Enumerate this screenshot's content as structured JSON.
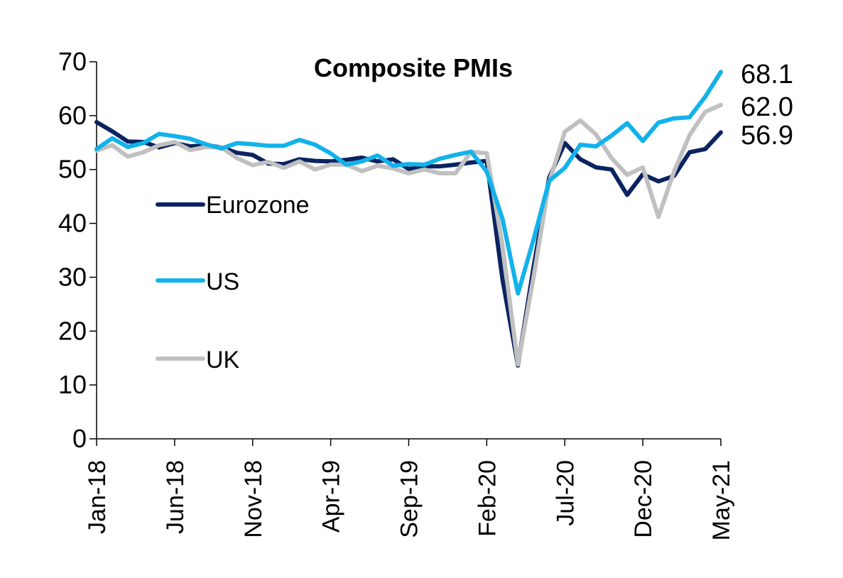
{
  "chart_data": {
    "type": "line",
    "title": "Composite PMIs",
    "xlabel": "",
    "ylabel": "",
    "ylim": [
      0,
      70
    ],
    "yticks": [
      0,
      10,
      20,
      30,
      40,
      50,
      60,
      70
    ],
    "grid": false,
    "legend_position": "left-middle",
    "x": [
      "Jan-18",
      "Feb-18",
      "Mar-18",
      "Apr-18",
      "May-18",
      "Jun-18",
      "Jul-18",
      "Aug-18",
      "Sep-18",
      "Oct-18",
      "Nov-18",
      "Dec-18",
      "Jan-19",
      "Feb-19",
      "Mar-19",
      "Apr-19",
      "May-19",
      "Jun-19",
      "Jul-19",
      "Aug-19",
      "Sep-19",
      "Oct-19",
      "Nov-19",
      "Dec-19",
      "Jan-20",
      "Feb-20",
      "Mar-20",
      "Apr-20",
      "May-20",
      "Jun-20",
      "Jul-20",
      "Aug-20",
      "Sep-20",
      "Oct-20",
      "Nov-20",
      "Dec-20",
      "Jan-21",
      "Feb-21",
      "Mar-21",
      "Apr-21",
      "May-21"
    ],
    "xtick_labels": [
      "Jan-18",
      "Jun-18",
      "Nov-18",
      "Apr-19",
      "Sep-19",
      "Feb-20",
      "Jul-20",
      "Dec-20",
      "May-21"
    ],
    "series": [
      {
        "name": "Eurozone",
        "color": "#0b2360",
        "values": [
          58.8,
          57.1,
          55.2,
          55.1,
          54.1,
          54.9,
          54.3,
          54.5,
          54.1,
          53.1,
          52.7,
          51.1,
          51.0,
          51.9,
          51.6,
          51.5,
          51.8,
          52.2,
          51.5,
          51.9,
          50.1,
          50.6,
          50.6,
          50.9,
          51.3,
          51.6,
          29.7,
          13.6,
          31.9,
          48.5,
          54.9,
          51.9,
          50.4,
          50.0,
          45.3,
          49.1,
          47.8,
          48.8,
          53.2,
          53.8,
          56.9
        ]
      },
      {
        "name": "US",
        "color": "#12b2ea",
        "values": [
          53.8,
          55.8,
          54.2,
          54.9,
          56.6,
          56.2,
          55.7,
          54.7,
          53.9,
          54.9,
          54.7,
          54.4,
          54.4,
          55.5,
          54.6,
          53.0,
          50.9,
          51.5,
          52.6,
          50.7,
          51.0,
          50.9,
          52.0,
          52.7,
          53.3,
          49.6,
          40.9,
          27.0,
          37.0,
          47.9,
          50.3,
          54.6,
          54.3,
          56.3,
          58.6,
          55.3,
          58.7,
          59.5,
          59.7,
          63.5,
          68.1
        ]
      },
      {
        "name": "UK",
        "color": "#c0c0c0",
        "values": [
          53.5,
          54.5,
          52.4,
          53.2,
          54.5,
          55.1,
          53.6,
          54.2,
          54.1,
          52.1,
          50.8,
          51.4,
          50.3,
          51.5,
          50.0,
          50.9,
          50.9,
          49.7,
          50.7,
          50.2,
          49.3,
          50.0,
          49.3,
          49.3,
          53.3,
          53.0,
          36.0,
          13.8,
          30.0,
          47.7,
          57.0,
          59.1,
          56.5,
          52.1,
          49.0,
          50.4,
          41.2,
          49.6,
          56.4,
          60.7,
          62.0
        ]
      }
    ],
    "end_labels": [
      "68.1",
      "62.0",
      "56.9"
    ]
  }
}
